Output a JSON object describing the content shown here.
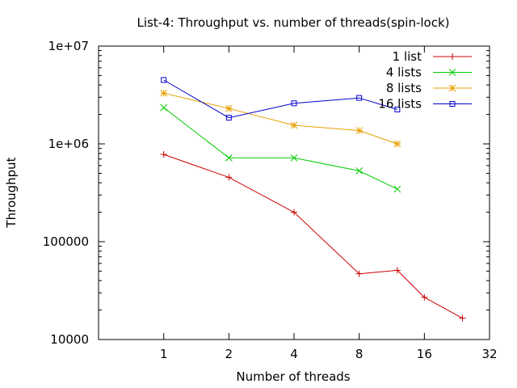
{
  "chart_data": {
    "type": "line",
    "title": "List-4: Throughput vs. number of threads(spin-lock)",
    "xlabel": "Number of threads",
    "ylabel": "Throughput",
    "x_scale": "log2",
    "y_scale": "log10",
    "xlim": [
      0.5,
      32
    ],
    "ylim": [
      10000,
      10000000
    ],
    "x_ticks": [
      1,
      2,
      4,
      8,
      16,
      32
    ],
    "x_tick_labels": [
      "1",
      "2",
      "4",
      "8",
      "16",
      "32"
    ],
    "y_ticks": [
      10000,
      100000,
      1000000,
      10000000
    ],
    "y_tick_labels": [
      "10000",
      "100000",
      "1e+06",
      "1e+07"
    ],
    "grid": false,
    "legend_position": "top-right",
    "series": [
      {
        "name": "1 list",
        "color": "#cc0000",
        "marker": "plus",
        "x": [
          1,
          2,
          4,
          8,
          12,
          16,
          24
        ],
        "y": [
          780000,
          455000,
          200000,
          47000,
          51000,
          27000,
          16500
        ]
      },
      {
        "name": "4 lists",
        "color": "#00cc00",
        "marker": "cross",
        "x": [
          1,
          2,
          4,
          8,
          12
        ],
        "y": [
          2350000,
          720000,
          720000,
          530000,
          345000
        ]
      },
      {
        "name": "8 lists",
        "color": "#e69f00",
        "marker": "star",
        "x": [
          1,
          2,
          4,
          8,
          12
        ],
        "y": [
          3300000,
          2300000,
          1550000,
          1370000,
          1000000
        ]
      },
      {
        "name": "16 lists",
        "color": "#0000cc",
        "marker": "square",
        "x": [
          1,
          2,
          4,
          8,
          12
        ],
        "y": [
          4500000,
          1850000,
          2600000,
          2950000,
          2250000
        ]
      }
    ]
  }
}
